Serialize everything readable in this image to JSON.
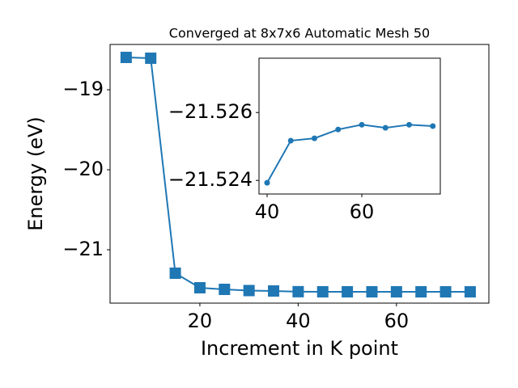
{
  "chart_data": [
    {
      "type": "line",
      "title": "Converged at 8x7x6 Automatic Mesh 50",
      "xlabel": "Increment in K point",
      "ylabel": "Energy (eV)",
      "marker": "square",
      "color": "#1f77b4",
      "x": [
        5,
        10,
        15,
        20,
        25,
        30,
        35,
        40,
        45,
        50,
        55,
        60,
        65,
        70,
        75
      ],
      "values": [
        -18.596,
        -18.606,
        -21.293,
        -21.475,
        -21.495,
        -21.51,
        -21.515,
        -21.52393,
        -21.52517,
        -21.52524,
        -21.5255,
        -21.52564,
        -21.52555,
        -21.52564,
        -21.5256
      ],
      "xlim": [
        1.73,
        78.8
      ],
      "ylim": [
        -21.667,
        -18.434
      ],
      "xticks": [
        20,
        40,
        60
      ],
      "yticks": [
        {
          "value": -21,
          "label": "−21"
        },
        {
          "value": -20,
          "label": "−20"
        },
        {
          "value": -19,
          "label": "−19"
        }
      ]
    },
    {
      "type": "line",
      "marker": "circle",
      "color": "#1f77b4",
      "x": [
        40,
        45,
        50,
        55,
        60,
        65,
        70,
        75
      ],
      "values": [
        -21.52393,
        -21.52517,
        -21.52524,
        -21.5255,
        -21.52564,
        -21.52555,
        -21.52564,
        -21.5256
      ],
      "xlim": [
        38.29,
        76.58
      ],
      "ylim": [
        -21.5236,
        -21.5276
      ],
      "xticks": [
        40,
        60
      ],
      "yticks": [
        {
          "value": -21.524,
          "label": "−21.524"
        },
        {
          "value": -21.526,
          "label": "−21.526"
        }
      ]
    }
  ]
}
